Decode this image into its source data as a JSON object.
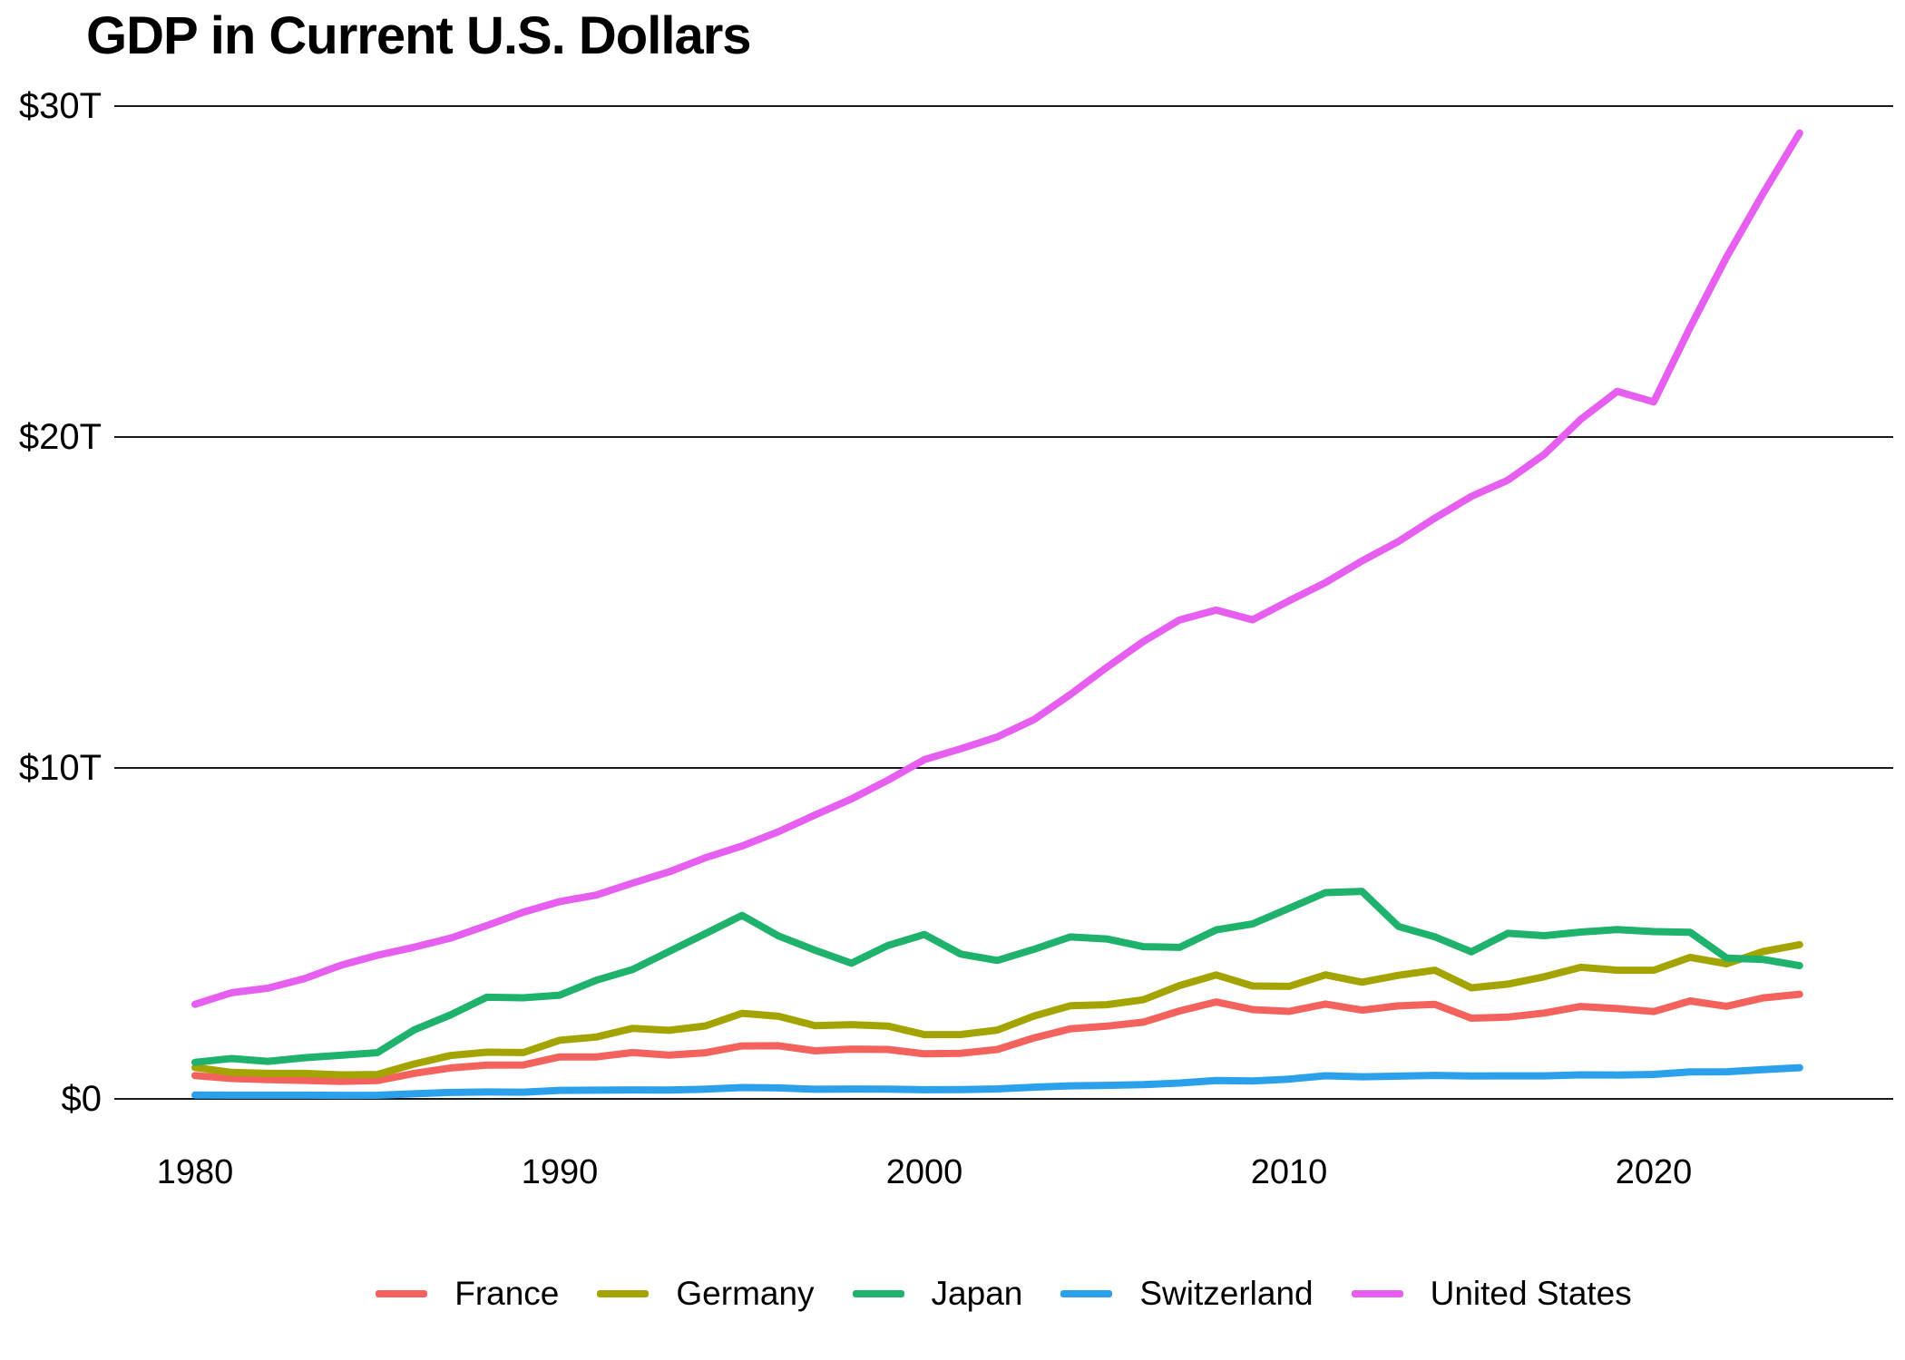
{
  "title": "GDP in Current U.S. Dollars",
  "chart_data": {
    "type": "line",
    "title": "GDP in Current U.S. Dollars",
    "value_unit": "trillions of current U.S. dollars",
    "grid": "horizontal",
    "legend_position": "bottom",
    "ylim": [
      0,
      30
    ],
    "x_axis": {
      "ticks": [
        1980,
        1990,
        2000,
        2010,
        2020
      ]
    },
    "y_axis": {
      "ticks": [
        {
          "value": 0,
          "label": "$0"
        },
        {
          "value": 10,
          "label": "$10T"
        },
        {
          "value": 20,
          "label": "$20T"
        },
        {
          "value": 30,
          "label": "$30T"
        }
      ]
    },
    "years": [
      1980,
      1981,
      1982,
      1983,
      1984,
      1985,
      1986,
      1987,
      1988,
      1989,
      1990,
      1991,
      1992,
      1993,
      1994,
      1995,
      1996,
      1997,
      1998,
      1999,
      2000,
      2001,
      2002,
      2003,
      2004,
      2005,
      2006,
      2007,
      2008,
      2009,
      2010,
      2011,
      2012,
      2013,
      2014,
      2015,
      2016,
      2017,
      2018,
      2019,
      2020,
      2021,
      2022,
      2023,
      2024
    ],
    "series": [
      {
        "name": "France",
        "color": "#f3625c",
        "values": [
          0.703,
          0.617,
          0.584,
          0.559,
          0.53,
          0.553,
          0.771,
          0.934,
          1.018,
          1.025,
          1.269,
          1.269,
          1.401,
          1.322,
          1.394,
          1.601,
          1.605,
          1.452,
          1.503,
          1.492,
          1.362,
          1.377,
          1.494,
          1.84,
          2.115,
          2.196,
          2.318,
          2.657,
          2.93,
          2.7,
          2.645,
          2.865,
          2.683,
          2.811,
          2.855,
          2.439,
          2.472,
          2.595,
          2.791,
          2.729,
          2.639,
          2.959,
          2.796,
          3.052,
          3.162
        ]
      },
      {
        "name": "Germany",
        "color": "#a4a400",
        "values": [
          0.947,
          0.8,
          0.771,
          0.77,
          0.725,
          0.737,
          1.052,
          1.309,
          1.41,
          1.399,
          1.772,
          1.869,
          2.132,
          2.071,
          2.205,
          2.586,
          2.496,
          2.213,
          2.243,
          2.199,
          1.943,
          1.944,
          2.079,
          2.501,
          2.814,
          2.846,
          2.994,
          3.425,
          3.745,
          3.411,
          3.399,
          3.749,
          3.527,
          3.733,
          3.889,
          3.357,
          3.469,
          3.69,
          3.974,
          3.889,
          3.887,
          4.278,
          4.082,
          4.456,
          4.66
        ]
      },
      {
        "name": "Japan",
        "color": "#1eb26c",
        "values": [
          1.105,
          1.219,
          1.134,
          1.243,
          1.318,
          1.398,
          2.079,
          2.533,
          3.072,
          3.054,
          3.133,
          3.584,
          3.909,
          4.454,
          4.998,
          5.546,
          4.924,
          4.493,
          4.099,
          4.636,
          4.968,
          4.374,
          4.183,
          4.519,
          4.893,
          4.832,
          4.601,
          4.579,
          5.106,
          5.289,
          5.759,
          6.233,
          6.272,
          5.212,
          4.897,
          4.444,
          5.004,
          4.931,
          5.041,
          5.118,
          5.055,
          5.034,
          4.256,
          4.213,
          4.026
        ]
      },
      {
        "name": "Switzerland",
        "color": "#2ba0eb",
        "values": [
          0.118,
          0.111,
          0.113,
          0.112,
          0.106,
          0.109,
          0.153,
          0.194,
          0.209,
          0.202,
          0.258,
          0.262,
          0.27,
          0.266,
          0.293,
          0.343,
          0.332,
          0.29,
          0.298,
          0.294,
          0.278,
          0.283,
          0.302,
          0.353,
          0.394,
          0.408,
          0.43,
          0.48,
          0.554,
          0.541,
          0.598,
          0.7,
          0.668,
          0.689,
          0.71,
          0.694,
          0.695,
          0.695,
          0.726,
          0.721,
          0.74,
          0.813,
          0.818,
          0.885,
          0.942
        ]
      },
      {
        "name": "United States",
        "color": "#e65ff0",
        "values": [
          2.857,
          3.207,
          3.344,
          3.634,
          4.038,
          4.339,
          4.58,
          4.855,
          5.236,
          5.642,
          5.963,
          6.158,
          6.52,
          6.859,
          7.287,
          7.64,
          8.073,
          8.578,
          9.063,
          9.631,
          10.251,
          10.582,
          10.936,
          11.458,
          12.217,
          13.039,
          13.816,
          14.474,
          14.77,
          14.478,
          15.049,
          15.6,
          16.254,
          16.843,
          17.551,
          18.206,
          18.695,
          19.477,
          20.533,
          21.381,
          21.06,
          23.315,
          25.44,
          27.361,
          29.185
        ]
      }
    ],
    "style": {
      "gridline_color": "#1a1a1a",
      "text_color": "#000000",
      "background": "#ffffff"
    }
  }
}
